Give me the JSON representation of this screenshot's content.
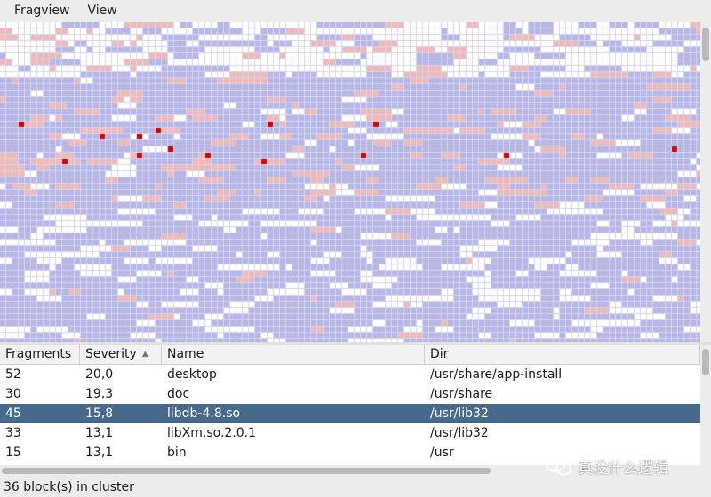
{
  "menubar": {
    "items": [
      "Fragview",
      "View"
    ]
  },
  "fragmap": {
    "colors": {
      "free": "#ffffff",
      "used": "#b6b6ea",
      "fragmented": "#f0b8b8",
      "selected": "#d10000",
      "grid": "#d6d6e6"
    }
  },
  "table": {
    "columns": [
      "Fragments",
      "Severity",
      "Name",
      "Dir"
    ],
    "sort_icon": "sort-ascending-icon",
    "rows": [
      {
        "fragments": "52",
        "severity": "20,0",
        "name": "desktop",
        "dir": "/usr/share/app-install"
      },
      {
        "fragments": "30",
        "severity": "19,3",
        "name": "doc",
        "dir": "/usr/share"
      },
      {
        "fragments": "45",
        "severity": "15,8",
        "name": "libdb-4.8.so",
        "dir": "/usr/lib32"
      },
      {
        "fragments": "33",
        "severity": "13,1",
        "name": "libXm.so.2.0.1",
        "dir": "/usr/lib32"
      },
      {
        "fragments": "15",
        "severity": "13,1",
        "name": "bin",
        "dir": "/usr"
      }
    ],
    "selected_row": 2
  },
  "status": {
    "text": "36 block(s) in cluster"
  },
  "watermark": {
    "text": "真没什么逻辑",
    "icon": "wechat-icon"
  }
}
